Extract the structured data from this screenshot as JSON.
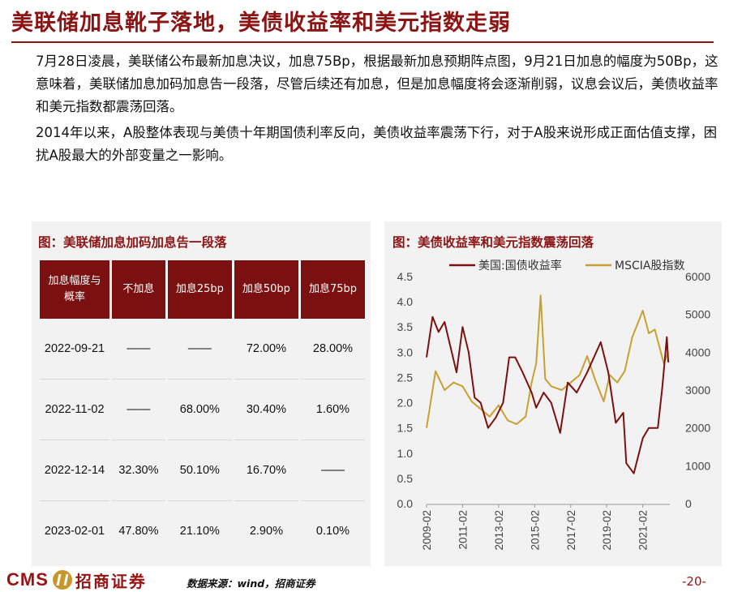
{
  "title": "美联储加息靴子落地，美债收益率和美元指数走弱",
  "paragraphs": [
    "7月28日凌晨，美联储公布最新加息决议，加息75Bp，根据最新加息预期阵点图，9月21日加息的幅度为50Bp，这意味着，美联储加息加码加息告一段落，尽管后续还有加息，但是加息幅度将会逐渐削弱，议息会议后，美债收益率和美元指数都震荡回落。",
    "2014年以来，A股整体表现与美债十年期国债利率反向，美债收益率震荡下行，对于A股来说形成正面估值支撑，困扰A股最大的外部变量之一影响。"
  ],
  "left_panel": {
    "title": "图：美联储加息加码加息告一段落",
    "headers": [
      "加息幅度与概率",
      "不加息",
      "加息25bp",
      "加息50bp",
      "加息75bp"
    ],
    "rows": [
      [
        "2022-09-21",
        "——",
        "——",
        "72.00%",
        "28.00%"
      ],
      [
        "2022-11-02",
        "——",
        "68.00%",
        "30.40%",
        "1.60%"
      ],
      [
        "2022-12-14",
        "32.30%",
        "50.10%",
        "16.70%",
        "——"
      ],
      [
        "2023-02-01",
        "47.80%",
        "21.10%",
        "2.90%",
        "0.10%"
      ]
    ]
  },
  "right_panel": {
    "title": "图：美债收益率和美元指数震荡回落"
  },
  "chart_data": {
    "type": "line",
    "title": "",
    "x_ticks": [
      "2009-02",
      "2011-02",
      "2013-02",
      "2015-02",
      "2017-02",
      "2019-02",
      "2021-02"
    ],
    "y_left": {
      "ylim": [
        0,
        4.5
      ],
      "ticks": [
        "0.0",
        "0.5",
        "1.0",
        "1.5",
        "2.0",
        "2.5",
        "3.0",
        "3.5",
        "4.0",
        "4.5"
      ]
    },
    "y_right": {
      "ylim": [
        0,
        6000
      ],
      "ticks": [
        "0",
        "1000",
        "2000",
        "3000",
        "4000",
        "5000",
        "6000"
      ]
    },
    "grid": false,
    "legend_position": "top",
    "series": [
      {
        "name": "美国:国债收益率",
        "axis": "left",
        "color": "#7a1010",
        "x": [
          "2009-02",
          "2009-06",
          "2009-10",
          "2010-02",
          "2010-06",
          "2010-10",
          "2011-02",
          "2011-06",
          "2011-10",
          "2012-02",
          "2012-07",
          "2012-12",
          "2013-05",
          "2013-09",
          "2014-01",
          "2014-06",
          "2014-12",
          "2015-03",
          "2015-08",
          "2016-01",
          "2016-07",
          "2016-12",
          "2017-06",
          "2018-01",
          "2018-10",
          "2019-03",
          "2019-08",
          "2020-01",
          "2020-03",
          "2020-08",
          "2021-02",
          "2021-06",
          "2021-12",
          "2022-03",
          "2022-06",
          "2022-07"
        ],
        "values": [
          2.9,
          3.7,
          3.4,
          3.6,
          3.1,
          2.6,
          3.5,
          3.0,
          2.1,
          2.0,
          1.5,
          1.7,
          2.0,
          2.9,
          2.9,
          2.6,
          2.2,
          1.9,
          2.2,
          2.0,
          1.4,
          2.4,
          2.2,
          2.6,
          3.2,
          2.6,
          1.6,
          1.8,
          0.8,
          0.6,
          1.3,
          1.5,
          1.5,
          2.3,
          3.3,
          2.8
        ]
      },
      {
        "name": "MSCIA股指数",
        "axis": "right",
        "color": "#c8a032",
        "x": [
          "2009-02",
          "2009-08",
          "2010-02",
          "2010-08",
          "2011-02",
          "2011-08",
          "2012-02",
          "2012-08",
          "2013-02",
          "2013-08",
          "2014-02",
          "2014-08",
          "2014-12",
          "2015-03",
          "2015-06",
          "2015-09",
          "2016-01",
          "2016-08",
          "2017-02",
          "2017-08",
          "2018-01",
          "2018-06",
          "2018-12",
          "2019-04",
          "2019-09",
          "2020-02",
          "2020-07",
          "2021-02",
          "2021-06",
          "2021-10",
          "2022-04",
          "2022-07"
        ],
        "values": [
          2000,
          3500,
          3000,
          3200,
          3100,
          2700,
          2500,
          2300,
          2600,
          2200,
          2100,
          2300,
          3200,
          3700,
          5500,
          3300,
          3100,
          3000,
          3200,
          3400,
          3900,
          3300,
          2700,
          3400,
          3200,
          3500,
          4400,
          5100,
          4500,
          4600,
          3700,
          4000
        ]
      }
    ]
  },
  "footer": {
    "cms": "CMS",
    "brand": "招商证券",
    "source": "数据来源：wind，招商证券",
    "page": "-20-"
  }
}
